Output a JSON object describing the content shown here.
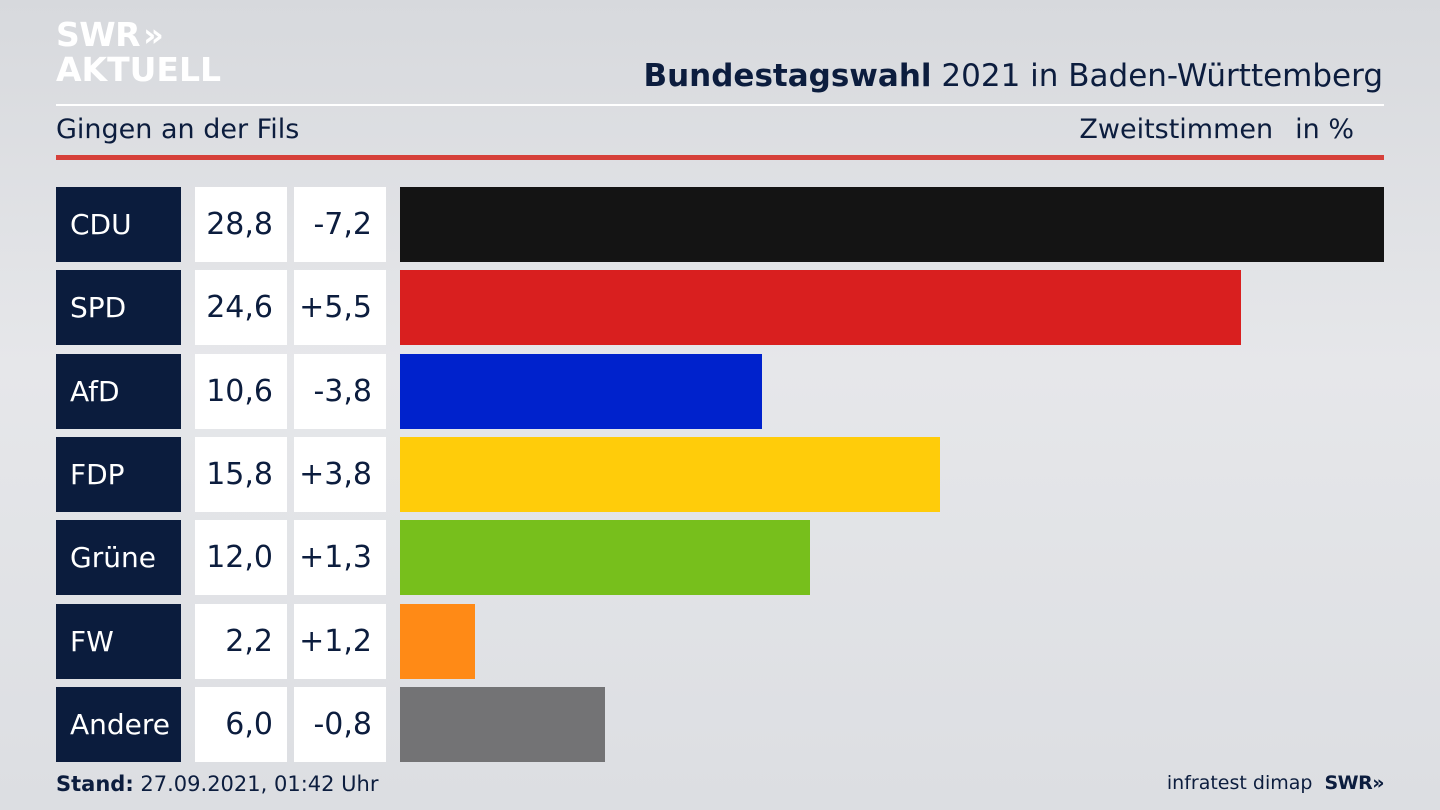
{
  "logo": {
    "line1": "SWR",
    "chevrons": "»",
    "line2": "AKTUELL"
  },
  "header": {
    "title_bold": "Bundestagswahl",
    "title_rest": " 2021 in Baden-Württemberg",
    "constituency": "Gingen an der Fils",
    "vote_type": "Zweitstimmen",
    "unit": "in %"
  },
  "chart_data": {
    "type": "bar",
    "orientation": "horizontal",
    "categories": [
      "CDU",
      "SPD",
      "AfD",
      "FDP",
      "Grüne",
      "FW",
      "Andere"
    ],
    "values": [
      28.8,
      24.6,
      10.6,
      15.8,
      12.0,
      2.2,
      6.0
    ],
    "values_label": [
      "28,8",
      "24,6",
      "10,6",
      "15,8",
      "12,0",
      "2,2",
      "6,0"
    ],
    "changes_label": [
      "-7,2",
      "+5,5",
      "-3,8",
      "+3,8",
      "+1,3",
      "+1,2",
      "-0,8"
    ],
    "colors": [
      "#141414",
      "#d91f1f",
      "#0022cc",
      "#ffcc0a",
      "#77bf1c",
      "#ff8a16",
      "#737375"
    ],
    "xlim": [
      0,
      28.8
    ]
  },
  "footer": {
    "stand_label": "Stand:",
    "stand_value": " 27.09.2021, 01:42 Uhr",
    "source": "infratest dimap",
    "brand": "SWR",
    "brand_chevrons": "»"
  }
}
